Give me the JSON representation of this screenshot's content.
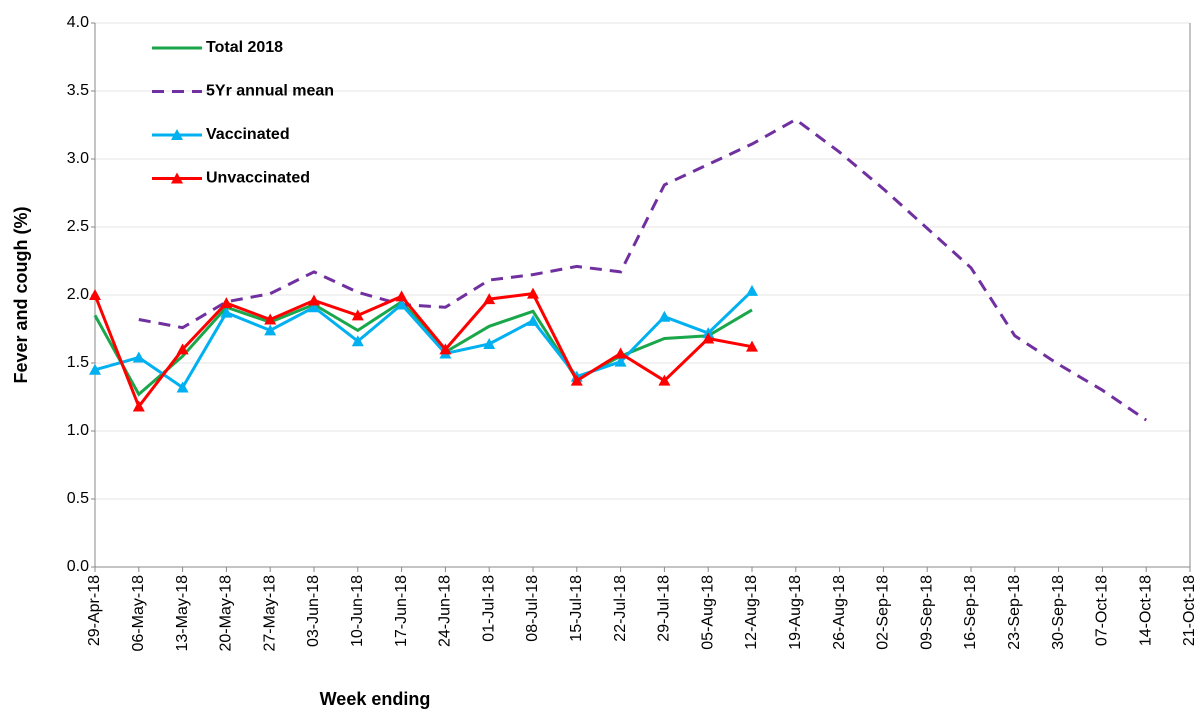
{
  "chart_data": {
    "type": "line",
    "xlabel": "Week ending",
    "ylabel": "Fever and cough (%)",
    "categories": [
      "29-Apr-18",
      "06-May-18",
      "13-May-18",
      "20-May-18",
      "27-May-18",
      "03-Jun-18",
      "10-Jun-18",
      "17-Jun-18",
      "24-Jun-18",
      "01-Jul-18",
      "08-Jul-18",
      "15-Jul-18",
      "22-Jul-18",
      "29-Jul-18",
      "05-Aug-18",
      "12-Aug-18",
      "19-Aug-18",
      "26-Aug-18",
      "02-Sep-18",
      "09-Sep-18",
      "16-Sep-18",
      "23-Sep-18",
      "30-Sep-18",
      "07-Oct-18",
      "14-Oct-18",
      "21-Oct-18"
    ],
    "series": [
      {
        "name": "Total 2018",
        "color": "#1aa64a",
        "dashed": false,
        "marker": "none",
        "values": [
          1.85,
          1.27,
          1.55,
          1.91,
          1.8,
          1.93,
          1.74,
          1.95,
          1.58,
          1.77,
          1.88,
          1.38,
          1.55,
          1.68,
          1.7,
          1.89,
          null,
          null,
          null,
          null,
          null,
          null,
          null,
          null,
          null,
          null
        ]
      },
      {
        "name": "5Yr annual mean",
        "color": "#7030a0",
        "dashed": true,
        "marker": "none",
        "values": [
          null,
          1.82,
          1.76,
          1.95,
          2.01,
          2.17,
          2.02,
          1.93,
          1.91,
          2.11,
          2.15,
          2.21,
          2.17,
          2.81,
          2.96,
          3.11,
          3.29,
          3.05,
          2.78,
          2.49,
          2.2,
          1.7,
          1.49,
          1.3,
          1.08,
          null
        ]
      },
      {
        "name": "Vaccinated",
        "color": "#00b0f0",
        "dashed": false,
        "marker": "triangle",
        "values": [
          1.45,
          1.54,
          1.32,
          1.87,
          1.74,
          1.91,
          1.66,
          1.93,
          1.57,
          1.64,
          1.81,
          1.4,
          1.51,
          1.84,
          1.72,
          2.03,
          null,
          null,
          null,
          null,
          null,
          null,
          null,
          null,
          null,
          null
        ]
      },
      {
        "name": "Unvaccinated",
        "color": "#ff0000",
        "dashed": false,
        "marker": "triangle",
        "values": [
          2.0,
          1.18,
          1.6,
          1.94,
          1.82,
          1.96,
          1.85,
          1.99,
          1.6,
          1.97,
          2.01,
          1.37,
          1.57,
          1.37,
          1.68,
          1.62,
          null,
          null,
          null,
          null,
          null,
          null,
          null,
          null,
          null,
          null
        ]
      }
    ],
    "ylim": [
      0,
      4
    ],
    "yticks": [
      {
        "value": 0,
        "label": "0.0"
      },
      {
        "value": 0.5,
        "label": "0.5"
      },
      {
        "value": 1,
        "label": "1.0"
      },
      {
        "value": 1.5,
        "label": "1.5"
      },
      {
        "value": 2,
        "label": "2.0"
      },
      {
        "value": 2.5,
        "label": "2.5"
      },
      {
        "value": 3,
        "label": "3.0"
      },
      {
        "value": 3.5,
        "label": "3.5"
      },
      {
        "value": 4,
        "label": "4.0"
      }
    ],
    "grid": true,
    "legend": "upper left"
  }
}
